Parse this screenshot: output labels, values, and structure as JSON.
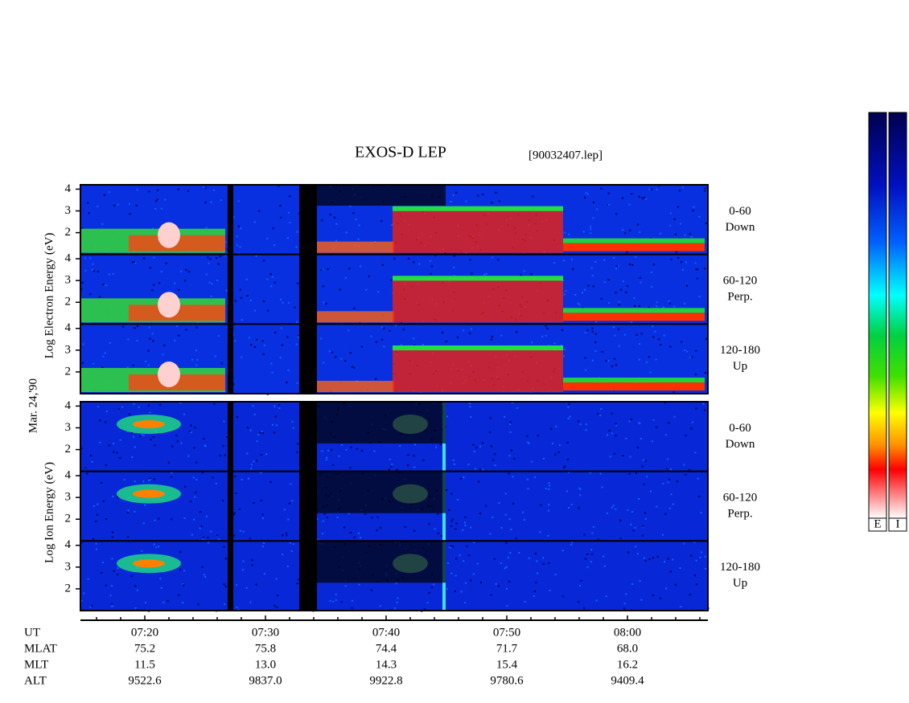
{
  "title": "EXOS-D LEP",
  "file": "[90032407.lep]",
  "date": "Mar. 24,'90",
  "groups": [
    {
      "axis_label": "Log  Electron  Energy (eV)",
      "panels": [
        [
          "0-60",
          "Down"
        ],
        [
          "60-120",
          "Perp."
        ],
        [
          "120-180",
          "Up"
        ]
      ]
    },
    {
      "axis_label": "Log  Ion  Energy (eV)",
      "panels": [
        [
          "0-60",
          "Down"
        ],
        [
          "60-120",
          "Perp."
        ],
        [
          "120-180",
          "Up"
        ]
      ]
    }
  ],
  "ylim": [
    1,
    4.2
  ],
  "yticks": [
    2,
    3,
    4
  ],
  "time_axis": {
    "rows": [
      {
        "label": "UT",
        "values": [
          "07:20",
          "07:30",
          "07:40",
          "07:50",
          "08:00"
        ]
      },
      {
        "label": "MLAT",
        "values": [
          "75.2",
          "75.8",
          "74.4",
          "71.7",
          "68.0"
        ]
      },
      {
        "label": "MLT",
        "values": [
          "11.5",
          "13.0",
          "14.3",
          "15.4",
          "16.2"
        ]
      },
      {
        "label": "ALT",
        "values": [
          "9522.6",
          "9837.0",
          "9922.8",
          "9780.6",
          "9409.4"
        ]
      }
    ]
  },
  "colorbars": [
    "E",
    "I"
  ]
}
